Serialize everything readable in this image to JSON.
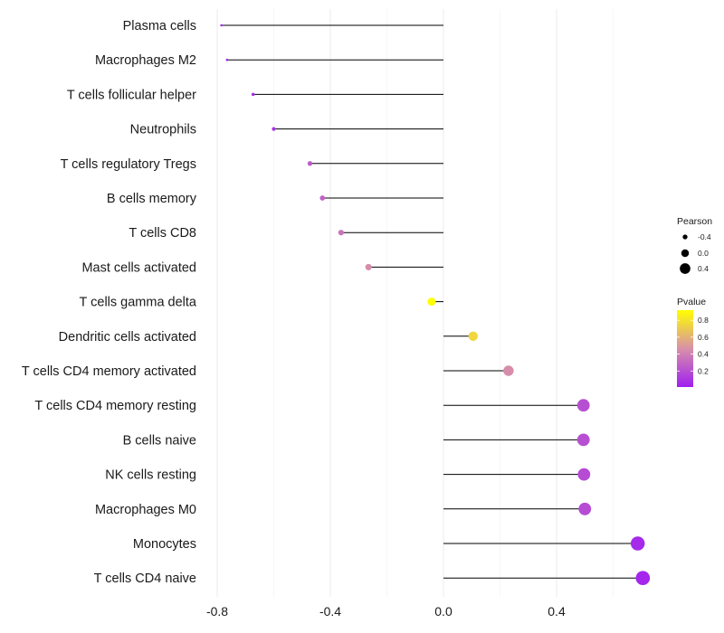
{
  "chart_data": {
    "type": "lollipop",
    "title": "",
    "xlabel": "",
    "ylabel": "",
    "xlim": [
      -0.8,
      0.75
    ],
    "x_ticks": [
      -0.8,
      -0.4,
      0.0,
      0.4
    ],
    "x_tick_labels": [
      "-0.8",
      "-0.4",
      "0.0",
      "0.4"
    ],
    "baseline": 0,
    "grid": "vertical",
    "categories": [
      "Plasma cells",
      "Macrophages M2",
      "T cells follicular helper",
      "Neutrophils",
      "T cells regulatory  Tregs",
      "B cells memory",
      "T cells CD8",
      "Mast cells activated",
      "T cells gamma delta",
      "Dendritic cells activated",
      "T cells CD4 memory activated",
      "T cells CD4 memory resting",
      "B cells naive",
      "NK cells resting",
      "Macrophages M0",
      "Monocytes",
      "T cells CD4 naive"
    ],
    "pearson": [
      -0.785,
      -0.765,
      -0.673,
      -0.6,
      -0.472,
      -0.428,
      -0.362,
      -0.265,
      -0.042,
      0.105,
      0.23,
      0.495,
      0.495,
      0.497,
      0.5,
      0.687,
      0.705
    ],
    "pvalue": [
      0.02,
      0.03,
      0.06,
      0.1,
      0.25,
      0.28,
      0.35,
      0.45,
      0.92,
      0.75,
      0.45,
      0.2,
      0.2,
      0.19,
      0.19,
      0.05,
      0.04
    ],
    "legend": {
      "size": {
        "title": "Pearson",
        "entries": [
          {
            "value": -0.4,
            "label": "-0.4"
          },
          {
            "value": 0.0,
            "label": "0.0"
          },
          {
            "value": 0.4,
            "label": "0.4"
          }
        ]
      },
      "color": {
        "title": "Pvalue",
        "ticks": [
          {
            "value": 0.8,
            "label": "0.8"
          },
          {
            "value": 0.6,
            "label": "0.6"
          },
          {
            "value": 0.4,
            "label": "0.4"
          },
          {
            "value": 0.2,
            "label": "0.2"
          }
        ],
        "range": [
          0.01,
          0.92
        ],
        "low_color": "#a020f0",
        "mid_color": "#d890a8",
        "high_color": "#ffff00"
      },
      "placement": "right"
    },
    "colors": {
      "segment": "#000000",
      "grid": "#ebebeb"
    }
  }
}
